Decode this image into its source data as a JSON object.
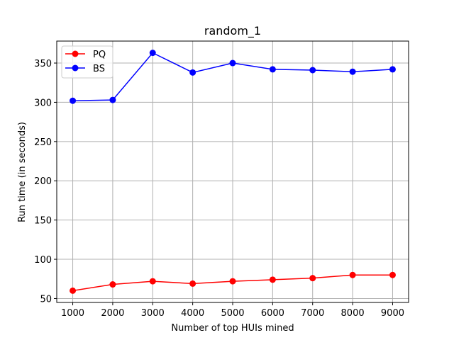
{
  "chart_data": {
    "type": "line",
    "title": "random_1",
    "xlabel": "Number of top HUIs mined",
    "ylabel": "Run time (in seconds)",
    "x": [
      1000,
      2000,
      3000,
      4000,
      5000,
      6000,
      7000,
      8000,
      9000
    ],
    "x_ticks": [
      "1000",
      "2000",
      "3000",
      "4000",
      "5000",
      "6000",
      "7000",
      "8000",
      "9000"
    ],
    "y_ticks": [
      "50",
      "100",
      "150",
      "200",
      "250",
      "300",
      "350"
    ],
    "xlim": [
      600,
      9400
    ],
    "ylim": [
      45,
      378
    ],
    "grid": true,
    "legend_position": "upper left",
    "series": [
      {
        "name": "PQ",
        "color": "#ff0000",
        "values": [
          60,
          68,
          72,
          69,
          72,
          74,
          76,
          80,
          80
        ]
      },
      {
        "name": "BS",
        "color": "#0000ff",
        "values": [
          302,
          303,
          363,
          338,
          350,
          342,
          341,
          339,
          342
        ]
      }
    ]
  }
}
